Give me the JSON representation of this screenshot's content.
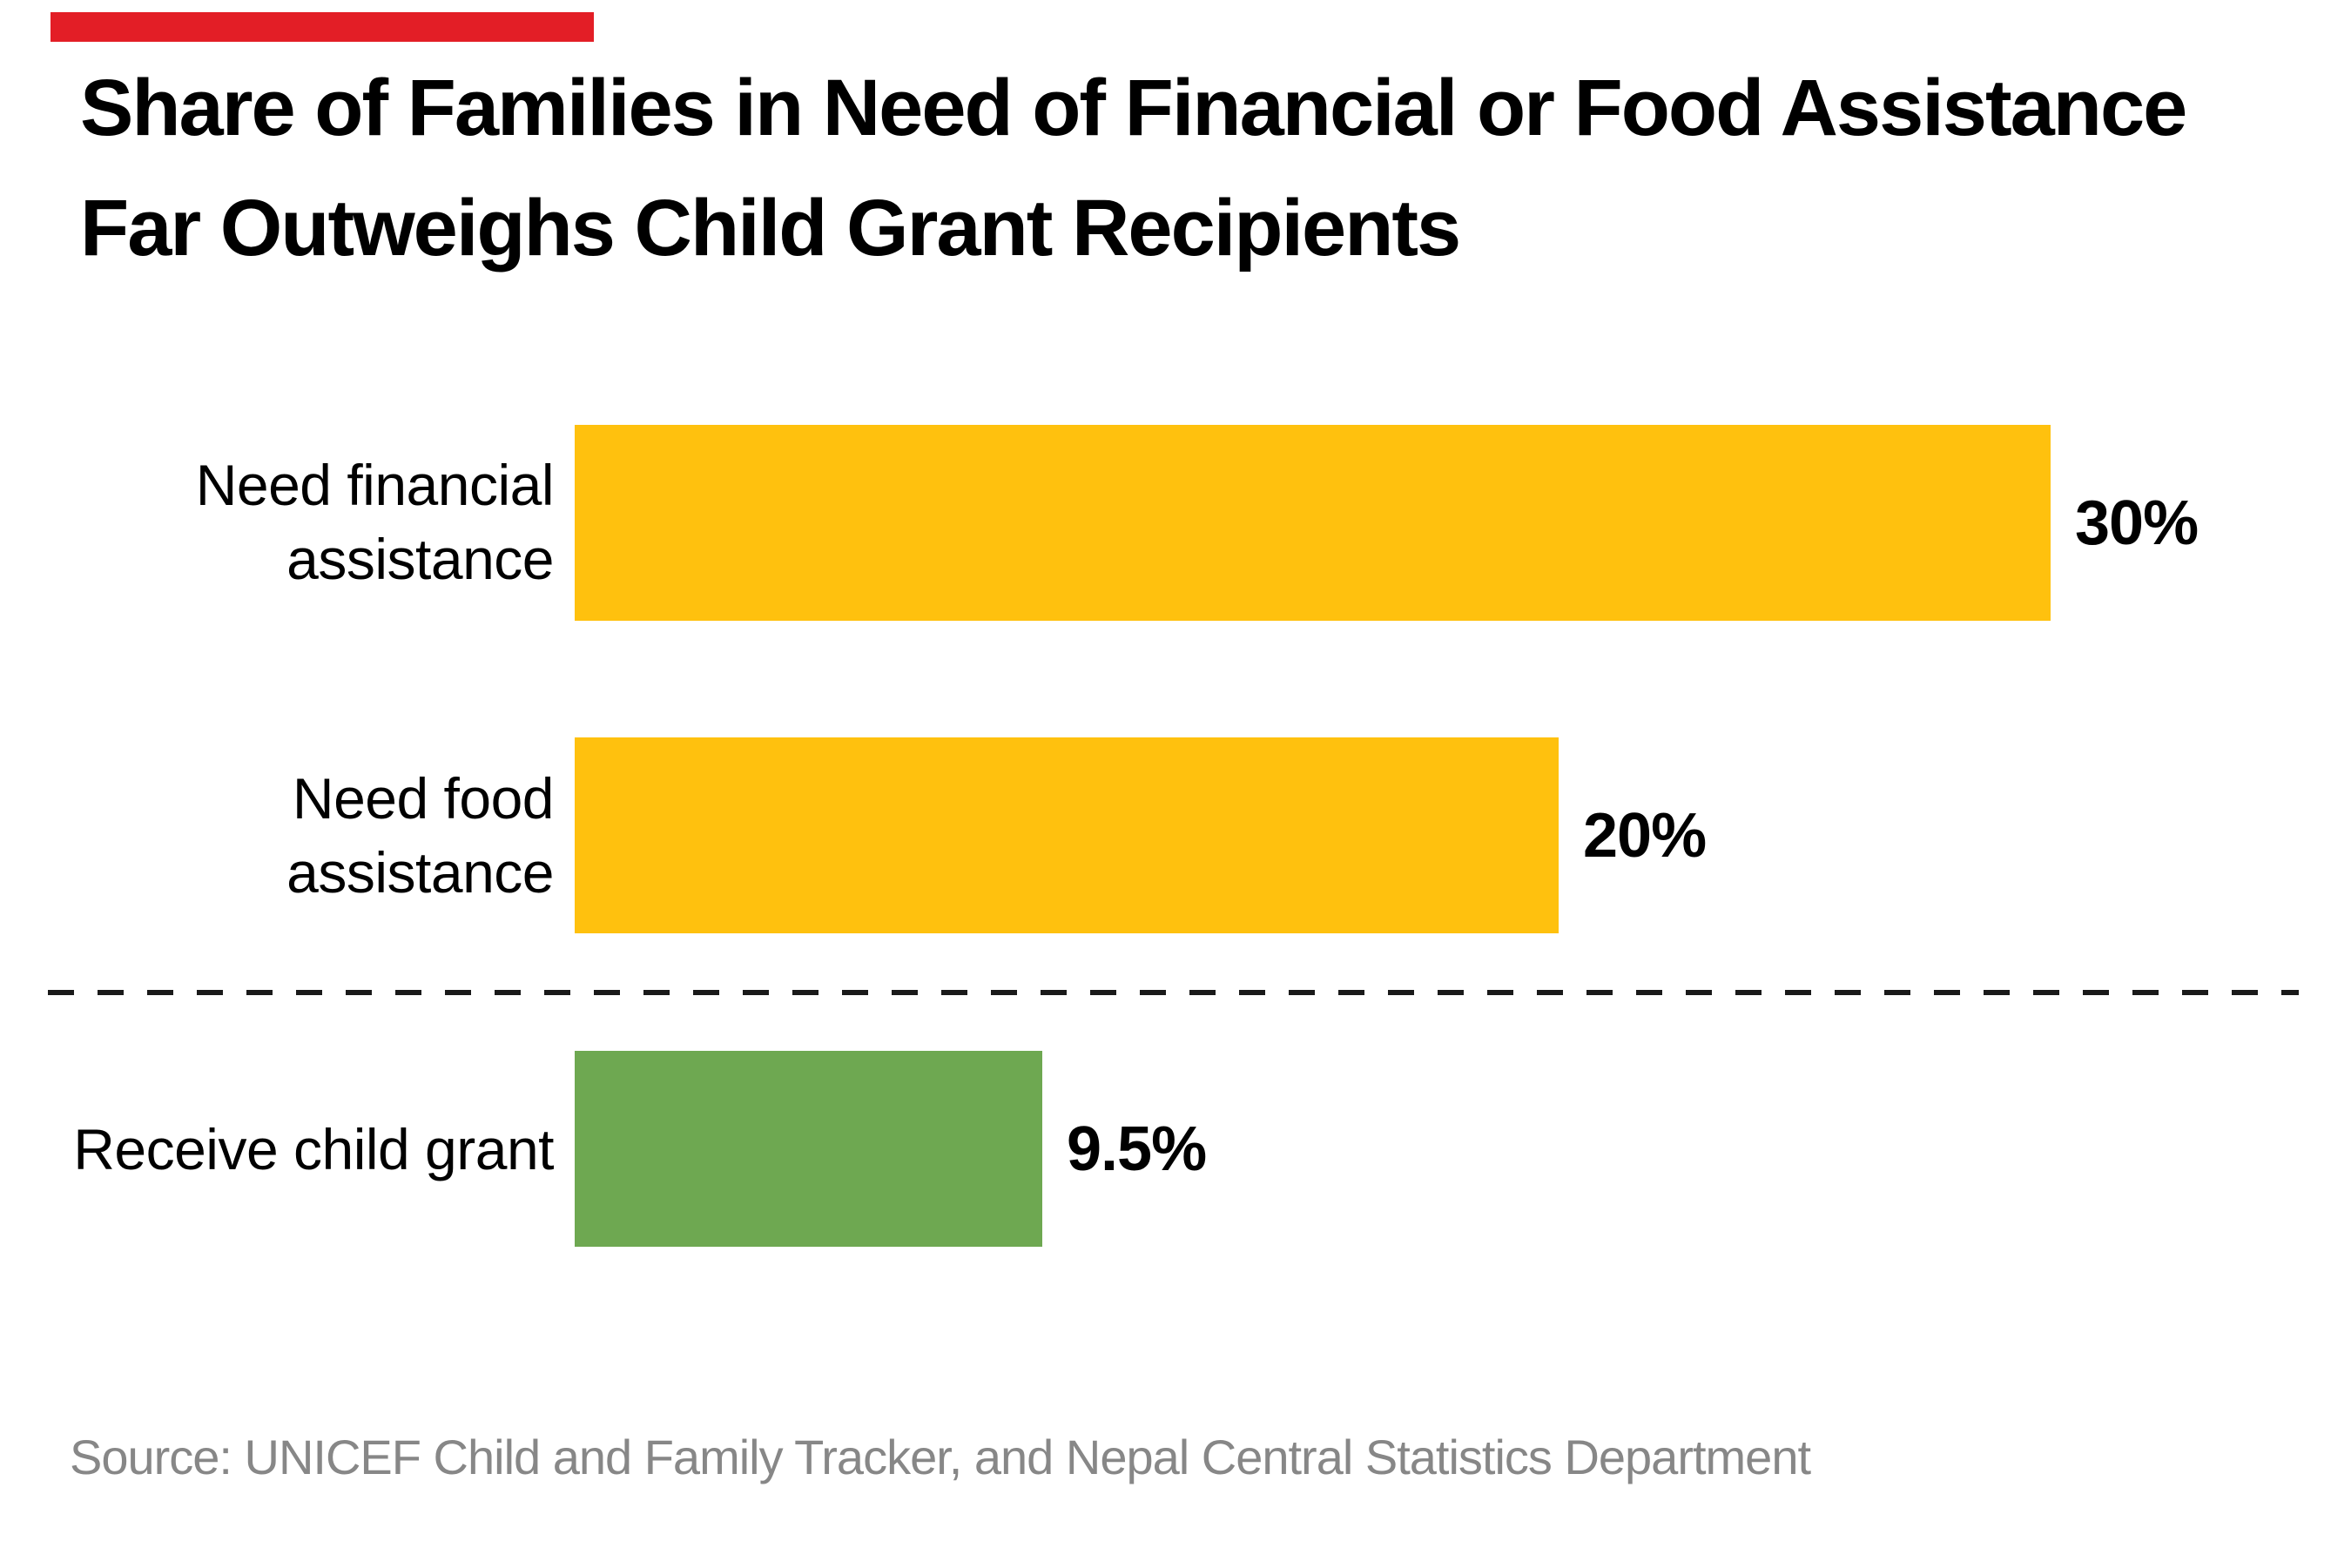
{
  "title": {
    "line1": "Share of Families in Need of Financial or Food Assistance",
    "line2": "Far Outweighs Child Grant Recipients"
  },
  "source": "Source: UNICEF Child and Family Tracker, and Nepal Central Statistics Department",
  "brand": {
    "accent_red": "#E31E26",
    "bar_yellow": "#FFC10E",
    "bar_green": "#6EA851",
    "source_gray": "#878787",
    "text_black": "#000000"
  },
  "chart_data": {
    "type": "bar",
    "orientation": "horizontal",
    "title": "Share of Families in Need of Financial or Food Assistance Far Outweighs Child Grant Recipients",
    "unit": "%",
    "categories": [
      "Need financial assistance",
      "Need food assistance",
      "Receive child grant"
    ],
    "values": [
      30,
      20,
      9.5
    ],
    "xlim": [
      0,
      30
    ],
    "axes_hidden": true,
    "grid": false,
    "legend": "none",
    "separator_note": "dashed horizontal line separates the two need-assistance bars from the receive-child-grant bar",
    "bars": [
      {
        "label_lines": [
          "Need financial",
          "assistance"
        ],
        "value": 30,
        "value_label": "30%",
        "color": "#FFC10E"
      },
      {
        "label_lines": [
          "Need food",
          "assistance"
        ],
        "value": 20,
        "value_label": "20%",
        "color": "#FFC10E"
      },
      {
        "label_lines": [
          "Receive child grant"
        ],
        "value": 9.5,
        "value_label": "9.5%",
        "color": "#6EA851"
      }
    ]
  }
}
